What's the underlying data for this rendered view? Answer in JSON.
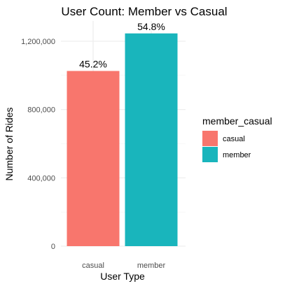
{
  "chart_data": {
    "type": "bar",
    "title": "User Count: Member vs Casual",
    "xlabel": "User Type",
    "ylabel": "Number of Rides",
    "categories": [
      "casual",
      "member"
    ],
    "values": [
      1026000,
      1246000
    ],
    "data_labels": [
      "45.2%",
      "54.8%"
    ],
    "colors": [
      "#F8766D",
      "#19B5BC"
    ],
    "ylim": [
      0,
      1300000
    ],
    "y_ticks": [
      0,
      400000,
      800000,
      1200000
    ],
    "y_tick_labels": [
      "0",
      "400,000",
      "800,000",
      "1,200,000"
    ],
    "grid": true,
    "legend": {
      "title": "member_casual",
      "position": "right",
      "entries": [
        "casual",
        "member"
      ]
    }
  }
}
